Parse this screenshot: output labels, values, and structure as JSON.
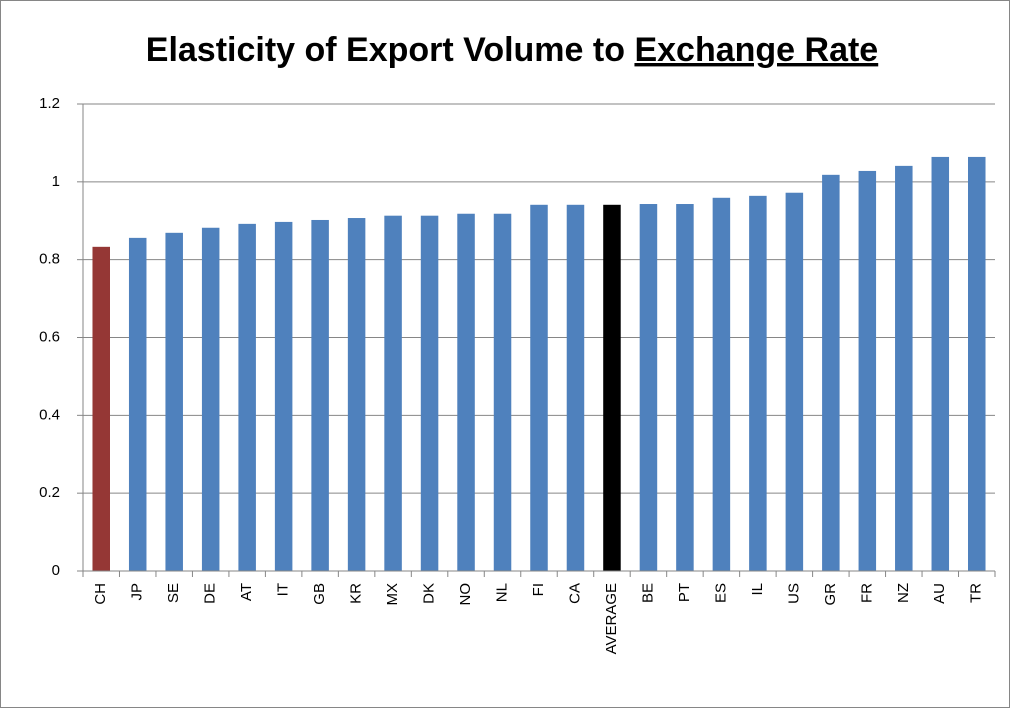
{
  "chart_data": {
    "type": "bar",
    "title": [
      "Elasticity of Export Volume to",
      "Exchange Rate"
    ],
    "categories": [
      "CH",
      "JP",
      "SE",
      "DE",
      "AT",
      "IT",
      "GB",
      "KR",
      "MX",
      "DK",
      "NO",
      "NL",
      "FI",
      "CA",
      "AVERAGE",
      "BE",
      "PT",
      "ES",
      "IL",
      "US",
      "GR",
      "FR",
      "NZ",
      "AU",
      "TR"
    ],
    "values": [
      0.833,
      0.856,
      0.869,
      0.882,
      0.892,
      0.897,
      0.902,
      0.907,
      0.913,
      0.913,
      0.918,
      0.918,
      0.941,
      0.941,
      0.941,
      0.943,
      0.943,
      0.959,
      0.964,
      0.972,
      1.018,
      1.028,
      1.041,
      1.064,
      1.064
    ],
    "colors": [
      "#953735",
      "#4f81bd",
      "#4f81bd",
      "#4f81bd",
      "#4f81bd",
      "#4f81bd",
      "#4f81bd",
      "#4f81bd",
      "#4f81bd",
      "#4f81bd",
      "#4f81bd",
      "#4f81bd",
      "#4f81bd",
      "#4f81bd",
      "#000000",
      "#4f81bd",
      "#4f81bd",
      "#4f81bd",
      "#4f81bd",
      "#4f81bd",
      "#4f81bd",
      "#4f81bd",
      "#4f81bd",
      "#4f81bd",
      "#4f81bd"
    ],
    "ylim": [
      0,
      1.2
    ],
    "yticks": [
      0,
      0.2,
      0.4,
      0.6,
      0.8,
      1,
      1.2
    ],
    "grid": true
  }
}
